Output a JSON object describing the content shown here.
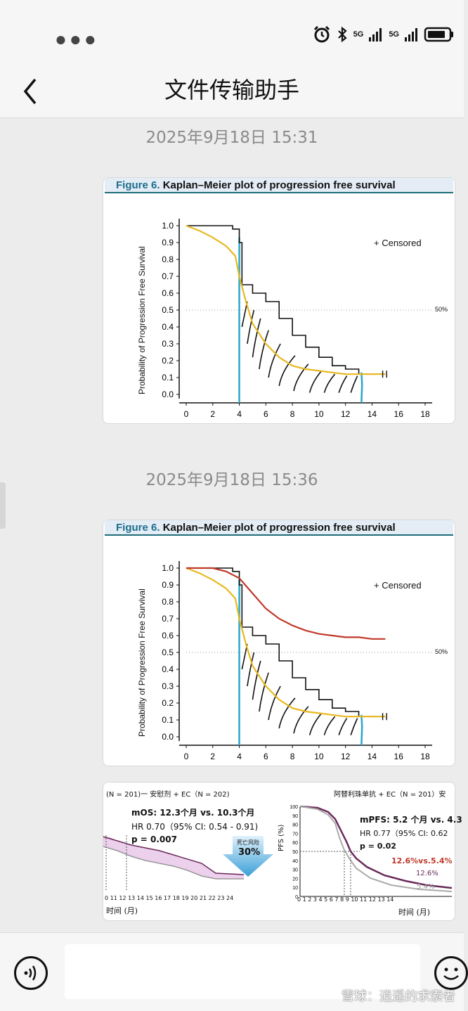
{
  "status": {
    "net1": "5G",
    "net2": "5G"
  },
  "nav": {
    "title": "文件传输助手"
  },
  "messages": [
    {
      "time": "2025年9月18日 15:31"
    },
    {
      "time": "2025年9月18日 15:36"
    }
  ],
  "figure": {
    "label": "Figure 6.",
    "caption": "Kaplan–Meier plot of progression free survival",
    "ylabel": "Probability of Progression Free Survival",
    "legend": "+ Censored",
    "ref_line": "50%",
    "yticks": [
      "1.0",
      "0.9",
      "0.8",
      "0.7",
      "0.6",
      "0.5",
      "0.4",
      "0.3",
      "0.2",
      "0.1",
      "0.0"
    ],
    "xticks": [
      "0",
      "2",
      "4",
      "6",
      "8",
      "10",
      "12",
      "14",
      "16",
      "18"
    ]
  },
  "chart_data": [
    {
      "type": "line",
      "title": "Kaplan–Meier plot of progression free survival",
      "ylabel": "Probability of Progression Free Survival",
      "xlim": [
        0,
        18
      ],
      "ylim": [
        0,
        1.0
      ],
      "series": [
        {
          "color": "#111111",
          "x": [
            0,
            2,
            3.5,
            4,
            4.2,
            5,
            6,
            7,
            8,
            9,
            10,
            11,
            12,
            13,
            15
          ],
          "y": [
            1.0,
            1.0,
            0.98,
            0.9,
            0.65,
            0.6,
            0.55,
            0.45,
            0.35,
            0.28,
            0.22,
            0.17,
            0.15,
            0.12,
            0.12
          ]
        },
        {
          "color": "#e8b820",
          "x": [
            0,
            1,
            2,
            3,
            3.7,
            4,
            4.5,
            5,
            6,
            7,
            8,
            9,
            10,
            11,
            12,
            13,
            15
          ],
          "y": [
            1.0,
            0.97,
            0.93,
            0.88,
            0.82,
            0.7,
            0.55,
            0.42,
            0.3,
            0.22,
            0.17,
            0.15,
            0.14,
            0.13,
            0.12,
            0.12,
            0.12
          ]
        }
      ]
    },
    {
      "type": "line",
      "title": "Kaplan–Meier plot of progression free survival",
      "ylabel": "Probability of Progression Free Survival",
      "xlim": [
        0,
        18
      ],
      "ylim": [
        0,
        1.0
      ],
      "series": [
        {
          "color": "#111111",
          "x": [
            0,
            2,
            3.5,
            4,
            4.2,
            5,
            6,
            7,
            8,
            9,
            10,
            11,
            12,
            13,
            15
          ],
          "y": [
            1.0,
            1.0,
            0.98,
            0.9,
            0.65,
            0.6,
            0.55,
            0.45,
            0.35,
            0.28,
            0.22,
            0.17,
            0.15,
            0.12,
            0.12
          ]
        },
        {
          "color": "#e8b820",
          "x": [
            0,
            1,
            2,
            3,
            3.7,
            4,
            4.5,
            5,
            6,
            7,
            8,
            9,
            10,
            11,
            12,
            13,
            15
          ],
          "y": [
            1.0,
            0.97,
            0.93,
            0.88,
            0.82,
            0.7,
            0.55,
            0.42,
            0.3,
            0.22,
            0.17,
            0.15,
            0.14,
            0.13,
            0.12,
            0.12,
            0.12
          ]
        },
        {
          "color": "#c0392b",
          "x": [
            0,
            2,
            3,
            4,
            5,
            6,
            7,
            8,
            9,
            10,
            11,
            12,
            13,
            14,
            15
          ],
          "y": [
            1.0,
            1.0,
            0.98,
            0.94,
            0.85,
            0.76,
            0.7,
            0.66,
            0.63,
            0.61,
            0.6,
            0.59,
            0.59,
            0.58,
            0.58
          ]
        }
      ]
    }
  ],
  "comparison": {
    "left_header": "(N = 201)一   安慰剂 + EC（N = 202)",
    "left_mos": "mOS:  12.3个月 vs. 10.3个月",
    "left_hr": "HR 0.70（95% CI: 0.54 - 0.91)",
    "left_p": "p = 0.007",
    "arrow_label": "死亡风险",
    "arrow_value": "30%",
    "left_xticks": "0 11 12 13 14 15 16 17 18 19 20 21 22 23 24",
    "left_xlabel": "时间 (月)",
    "right_header": "阿替利珠单抗 + EC（N = 201）安",
    "right_ylabel": "PFS (%)",
    "right_mpfs": "mPFS:  5.2 个月 vs. 4.3",
    "right_hr": "HR 0.77（95% CI: 0.62",
    "right_p": "p = 0.02",
    "right_compare": "12.6%vs.5.4%",
    "right_v1": "12.6%",
    "right_v2": "5.4%",
    "right_yticks": [
      "100",
      "90",
      "80",
      "70",
      "60",
      "50",
      "40",
      "30",
      "20",
      "10",
      "0"
    ],
    "right_xticks": "0 1 2 3 4 5 6 7 8 9 10 11 12 13 14",
    "right_xlabel": "时间 (月)"
  },
  "watermark": "雪球：逍遥的求索者"
}
